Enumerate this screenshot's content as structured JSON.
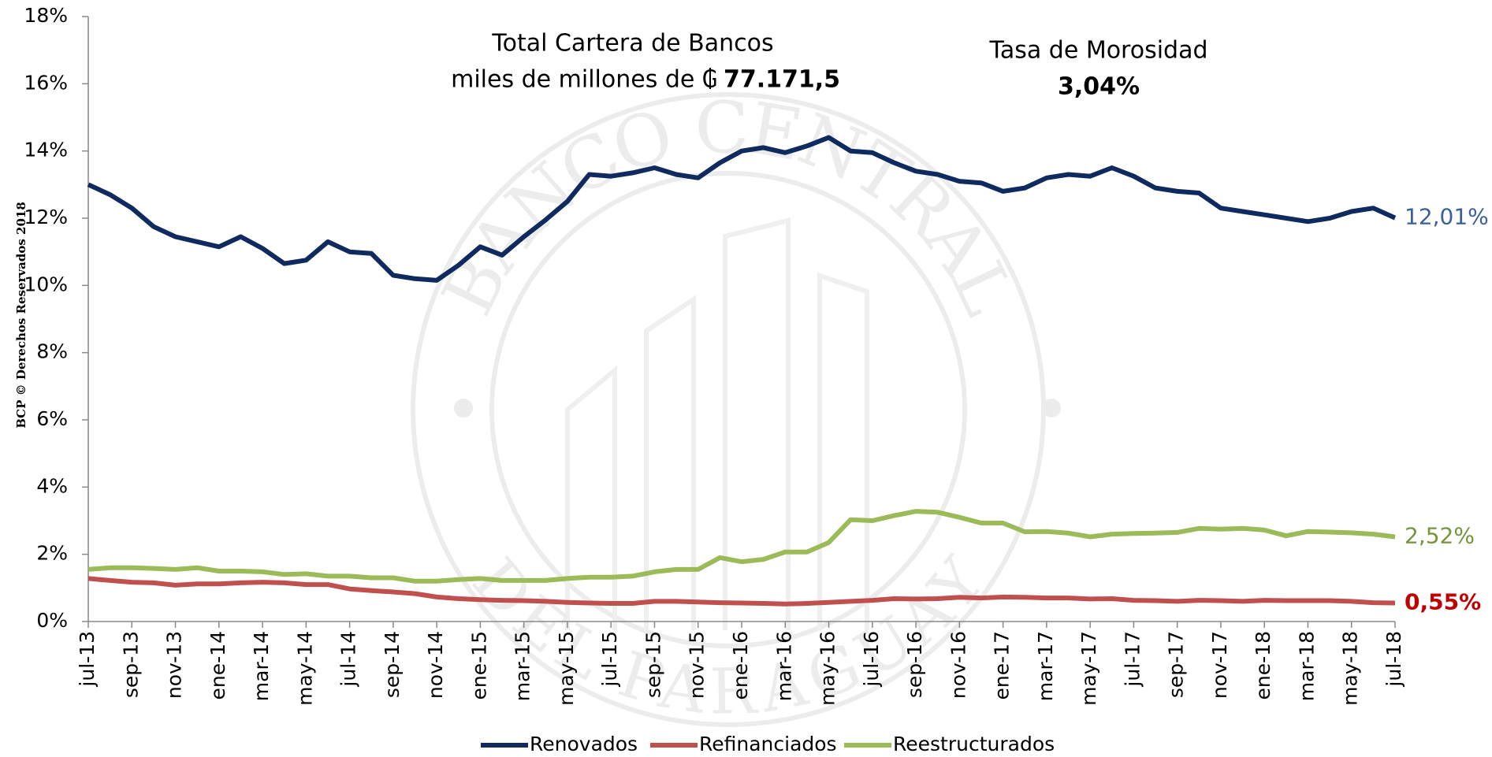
{
  "chart_data": {
    "type": "line",
    "annotations": {
      "portfolio_title": "Total Cartera de Bancos",
      "portfolio_unit": "miles de millones de ₲",
      "portfolio_value": "77.171,5",
      "rate_title": "Tasa de Morosidad",
      "rate_value": "3,04%"
    },
    "watermark": {
      "top": "BANCO CENTRAL",
      "bottom": "DEL PARAGUAY",
      "copyright": "BCP © Derechos Reservados 2018"
    },
    "categories": [
      "jul-13",
      null,
      "sep-13",
      null,
      "nov-13",
      null,
      "ene-14",
      null,
      "mar-14",
      null,
      "may-14",
      null,
      "jul-14",
      null,
      "sep-14",
      null,
      "nov-14",
      null,
      "ene-15",
      null,
      "mar-15",
      null,
      "may-15",
      null,
      "jul-15",
      null,
      "sep-15",
      null,
      "nov-15",
      null,
      "ene-16",
      null,
      "mar-16",
      null,
      "may-16",
      null,
      "jul-16",
      null,
      "sep-16",
      null,
      "nov-16",
      null,
      "ene-17",
      null,
      "mar-17",
      null,
      "may-17",
      null,
      "jul-17",
      null,
      "sep-17",
      null,
      "nov-17",
      null,
      "ene-18",
      null,
      "mar-18",
      null,
      "may-18",
      null,
      "jul-18"
    ],
    "series": [
      {
        "name": "Renovados",
        "color": "#0f2a5e",
        "label_color": "#3a5f9a",
        "values": [
          13.0,
          12.7,
          12.3,
          11.75,
          11.45,
          11.3,
          11.15,
          11.45,
          11.1,
          10.65,
          10.75,
          11.3,
          11.0,
          10.95,
          10.3,
          10.2,
          10.15,
          10.6,
          11.15,
          10.9,
          11.45,
          11.95,
          12.5,
          13.3,
          13.25,
          13.35,
          13.5,
          13.3,
          13.2,
          13.65,
          14.0,
          14.1,
          13.95,
          14.15,
          14.4,
          14.0,
          13.95,
          13.65,
          13.4,
          13.3,
          13.1,
          13.05,
          12.8,
          12.9,
          13.2,
          13.3,
          13.25,
          13.5,
          13.25,
          12.9,
          12.8,
          12.75,
          12.3,
          12.2,
          12.1,
          12.0,
          11.9,
          12.0,
          12.2,
          12.3,
          12.01
        ],
        "value_labels": [
          null,
          null,
          null,
          null,
          null,
          null,
          null,
          null,
          null,
          null,
          null,
          null,
          null,
          null,
          null,
          null,
          null,
          null,
          null,
          null,
          null,
          null,
          null,
          null,
          null,
          null,
          null,
          null,
          null,
          null,
          null,
          null,
          null,
          null,
          null,
          null,
          null,
          null,
          null,
          null,
          null,
          null,
          null,
          null,
          null,
          null,
          null,
          null,
          null,
          null,
          null,
          null,
          null,
          null,
          null,
          null,
          null,
          null,
          null,
          null,
          "12,01%"
        ]
      },
      {
        "name": "Refinanciados",
        "color": "#c0504d",
        "label_color": "#c00000",
        "values": [
          1.28,
          1.22,
          1.17,
          1.15,
          1.08,
          1.12,
          1.12,
          1.15,
          1.17,
          1.15,
          1.1,
          1.1,
          0.97,
          0.92,
          0.88,
          0.83,
          0.73,
          0.68,
          0.65,
          0.63,
          0.62,
          0.6,
          0.57,
          0.55,
          0.54,
          0.54,
          0.6,
          0.6,
          0.58,
          0.56,
          0.55,
          0.54,
          0.52,
          0.54,
          0.57,
          0.6,
          0.63,
          0.68,
          0.67,
          0.68,
          0.72,
          0.7,
          0.73,
          0.72,
          0.7,
          0.7,
          0.67,
          0.68,
          0.63,
          0.62,
          0.6,
          0.63,
          0.62,
          0.6,
          0.63,
          0.62,
          0.62,
          0.62,
          0.6,
          0.56,
          0.55
        ],
        "value_labels": [
          null,
          null,
          null,
          null,
          null,
          null,
          null,
          null,
          null,
          null,
          null,
          null,
          null,
          null,
          null,
          null,
          null,
          null,
          null,
          null,
          null,
          null,
          null,
          null,
          null,
          null,
          null,
          null,
          null,
          null,
          null,
          null,
          null,
          null,
          null,
          null,
          null,
          null,
          null,
          null,
          null,
          null,
          null,
          null,
          null,
          null,
          null,
          null,
          null,
          null,
          null,
          null,
          null,
          null,
          null,
          null,
          null,
          null,
          null,
          null,
          "0,55%"
        ]
      },
      {
        "name": "Reestructurados",
        "color": "#9bbb59",
        "label_color": "#77933c",
        "values": [
          1.55,
          1.6,
          1.6,
          1.58,
          1.55,
          1.6,
          1.5,
          1.5,
          1.48,
          1.4,
          1.42,
          1.35,
          1.35,
          1.3,
          1.3,
          1.2,
          1.2,
          1.25,
          1.28,
          1.22,
          1.22,
          1.22,
          1.28,
          1.32,
          1.32,
          1.35,
          1.48,
          1.55,
          1.55,
          1.9,
          1.78,
          1.85,
          2.07,
          2.07,
          2.35,
          3.03,
          3.0,
          3.15,
          3.28,
          3.25,
          3.1,
          2.93,
          2.93,
          2.67,
          2.68,
          2.63,
          2.52,
          2.6,
          2.62,
          2.63,
          2.65,
          2.77,
          2.75,
          2.77,
          2.72,
          2.55,
          2.68,
          2.66,
          2.64,
          2.6,
          2.52
        ],
        "value_labels": [
          null,
          null,
          null,
          null,
          null,
          null,
          null,
          null,
          null,
          null,
          null,
          null,
          null,
          null,
          null,
          null,
          null,
          null,
          null,
          null,
          null,
          null,
          null,
          null,
          null,
          null,
          null,
          null,
          null,
          null,
          null,
          null,
          null,
          null,
          null,
          null,
          null,
          null,
          null,
          null,
          null,
          null,
          null,
          null,
          null,
          null,
          null,
          null,
          null,
          null,
          null,
          null,
          null,
          null,
          null,
          null,
          null,
          null,
          null,
          null,
          "2,52%"
        ]
      }
    ],
    "ylim": [
      0,
      18
    ],
    "yticks": [
      {
        "value": 0,
        "label": "0%"
      },
      {
        "value": 2,
        "label": "2%"
      },
      {
        "value": 4,
        "label": "4%"
      },
      {
        "value": 6,
        "label": "6%"
      },
      {
        "value": 8,
        "label": "8%"
      },
      {
        "value": 10,
        "label": "10%"
      },
      {
        "value": 12,
        "label": "12%"
      },
      {
        "value": 14,
        "label": "14%"
      },
      {
        "value": 16,
        "label": "16%"
      },
      {
        "value": 18,
        "label": "18%"
      }
    ],
    "grid": false,
    "legend": "bottom"
  }
}
